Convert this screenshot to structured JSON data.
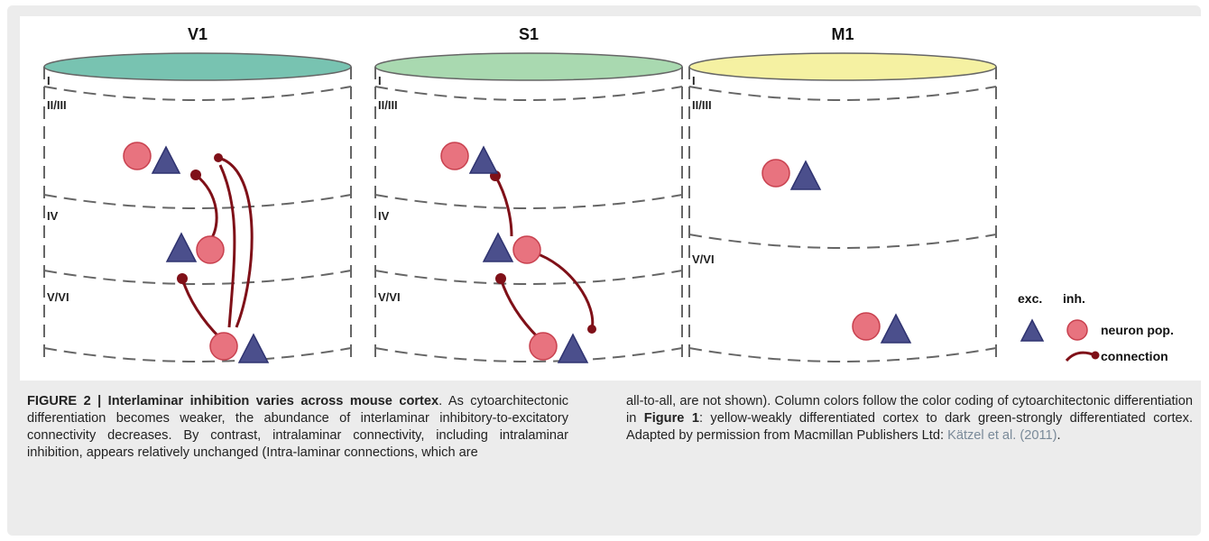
{
  "figure": {
    "columns": [
      {
        "id": "V1",
        "title": "V1",
        "top_color": "#78c3b1",
        "layers": [
          "I",
          "II/III",
          "IV",
          "V/VI"
        ]
      },
      {
        "id": "S1",
        "title": "S1",
        "top_color": "#a9d9b0",
        "layers": [
          "I",
          "II/III",
          "IV",
          "V/VI"
        ]
      },
      {
        "id": "M1",
        "title": "M1",
        "top_color": "#f5f1a2",
        "layers": [
          "I",
          "II/III",
          "V/VI"
        ]
      }
    ],
    "colors": {
      "excitatory": "#4b4f8c",
      "inhibitory": "#e8737f",
      "connection": "#7f1018",
      "outline": "#666666"
    },
    "legend": {
      "exc_label": "exc.",
      "inh_label": "inh.",
      "population_label": "neuron pop.",
      "connection_label": "connection"
    }
  },
  "caption": {
    "label": "FIGURE 2 | Interlaminar inhibition varies across mouse cortex",
    "label_end": ".",
    "left_text": " As cytoarchitectonic differentiation becomes weaker, the abundance of interlaminar inhibitory-to-excitatory connectivity decreases. By contrast, intralaminar connectivity, including intralaminar inhibition, appears relatively unchanged (Intra-laminar connections, which are",
    "right_text_1": "all-to-all, are not shown). Column colors follow the color coding of cytoarchitectonic differentiation in ",
    "figure_ref": "Figure 1",
    "right_text_2": ": yellow-weakly differentiated cortex to dark green-strongly differentiated cortex. Adapted by permission from Macmillan Publishers Ltd: ",
    "citation": "Kätzel et al. (2011)",
    "right_text_3": "."
  }
}
